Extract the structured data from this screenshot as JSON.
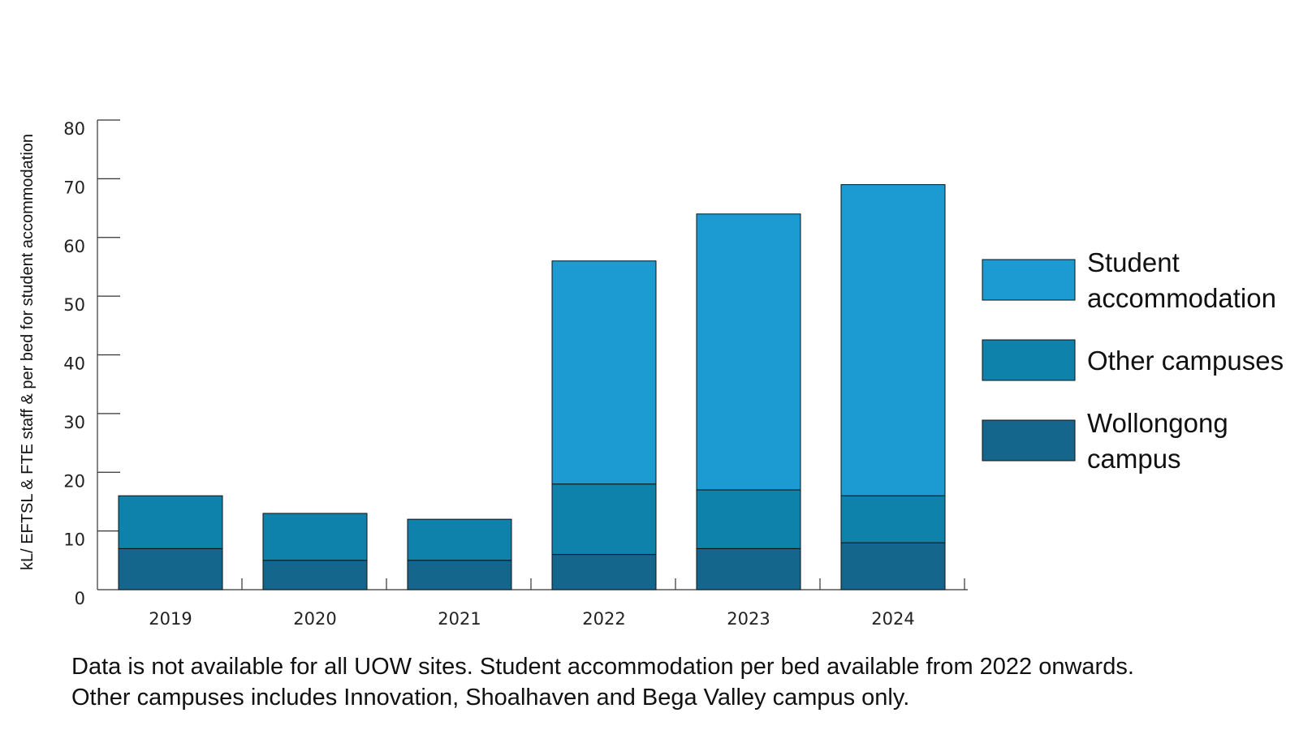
{
  "chart_data": {
    "type": "bar",
    "stacked": true,
    "categories": [
      "2019",
      "2020",
      "2021",
      "2022",
      "2023",
      "2024"
    ],
    "series": [
      {
        "name": "Wollongong campus",
        "color": "#15668c",
        "values": [
          7,
          5,
          5,
          6,
          7,
          8
        ]
      },
      {
        "name": "Other campuses",
        "color": "#0e82ab",
        "values": [
          9,
          8,
          7,
          12,
          10,
          8
        ]
      },
      {
        "name": "Student accommodation",
        "color": "#1b9bd1",
        "values": [
          0,
          0,
          0,
          38,
          47,
          53
        ]
      }
    ],
    "ylim": [
      0,
      80
    ],
    "yticks": [
      "0",
      "10",
      "20",
      "30",
      "40",
      "50",
      "60",
      "70",
      "80"
    ],
    "ylabel": "kL/ EFTSL & FTE staff & per bed for student accommodation",
    "xlabel": "",
    "title": "",
    "grid": false,
    "legend_position": "right",
    "legend": [
      {
        "lines": [
          "Student",
          "accommodation"
        ],
        "color": "#1b9bd1"
      },
      {
        "lines": [
          "Other campuses"
        ],
        "color": "#0e82ab"
      },
      {
        "lines": [
          "Wollongong",
          "campus"
        ],
        "color": "#15668c"
      }
    ]
  },
  "notes": {
    "line1": "Data is not available for all UOW sites. Student accommodation per bed available from 2022 onwards.",
    "line2": "Other campuses includes Innovation, Shoalhaven and Bega Valley campus only."
  }
}
